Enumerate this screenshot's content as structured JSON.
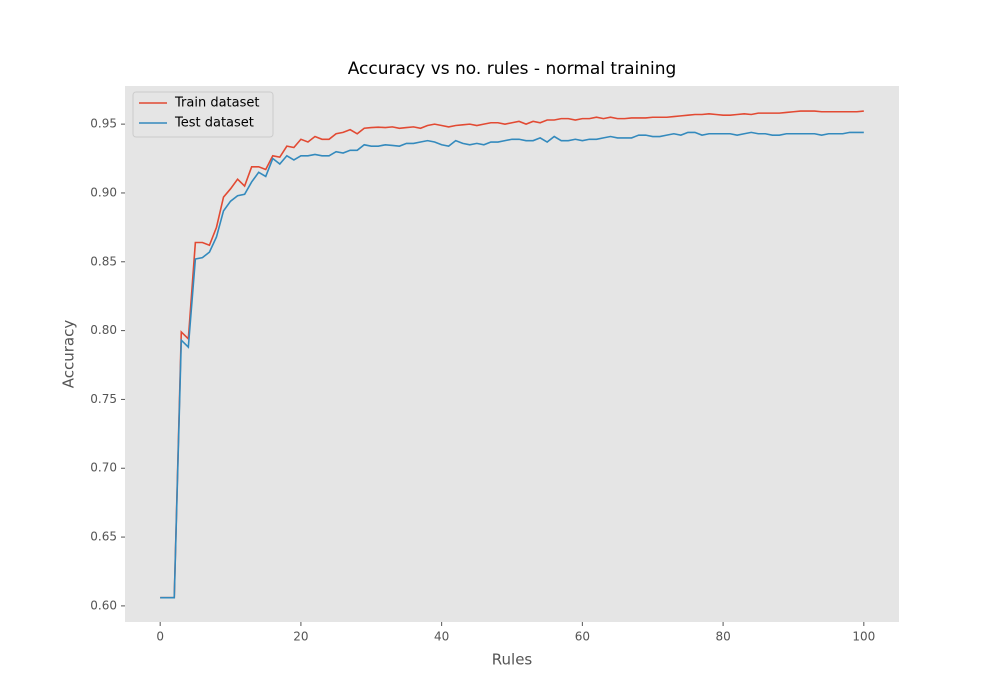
{
  "chart_data": {
    "type": "line",
    "title": "Accuracy vs no. rules - normal training",
    "x_label": "Rules",
    "y_label": "Accuracy",
    "x": [
      0,
      1,
      2,
      3,
      4,
      5,
      6,
      7,
      8,
      9,
      10,
      11,
      12,
      13,
      14,
      15,
      16,
      17,
      18,
      19,
      20,
      21,
      22,
      23,
      24,
      25,
      26,
      27,
      28,
      29,
      30,
      31,
      32,
      33,
      34,
      35,
      36,
      37,
      38,
      39,
      40,
      41,
      42,
      43,
      44,
      45,
      46,
      47,
      48,
      49,
      50,
      51,
      52,
      53,
      54,
      55,
      56,
      57,
      58,
      59,
      60,
      61,
      62,
      63,
      64,
      65,
      66,
      67,
      68,
      69,
      70,
      71,
      72,
      73,
      74,
      75,
      76,
      77,
      78,
      79,
      80,
      81,
      82,
      83,
      84,
      85,
      86,
      87,
      88,
      89,
      90,
      91,
      92,
      93,
      94,
      95,
      96,
      97,
      98,
      99,
      100
    ],
    "series": [
      {
        "name": "Train dataset",
        "color": "#e24a33",
        "values": [
          0.606,
          0.606,
          0.606,
          0.799,
          0.794,
          0.864,
          0.864,
          0.862,
          0.875,
          0.897,
          0.903,
          0.91,
          0.905,
          0.919,
          0.919,
          0.917,
          0.927,
          0.926,
          0.934,
          0.933,
          0.939,
          0.937,
          0.941,
          0.939,
          0.939,
          0.943,
          0.944,
          0.946,
          0.943,
          0.947,
          0.9475,
          0.9478,
          0.9475,
          0.948,
          0.947,
          0.9475,
          0.948,
          0.947,
          0.949,
          0.95,
          0.949,
          0.948,
          0.949,
          0.9495,
          0.95,
          0.949,
          0.95,
          0.951,
          0.951,
          0.95,
          0.951,
          0.952,
          0.95,
          0.952,
          0.951,
          0.953,
          0.953,
          0.954,
          0.954,
          0.953,
          0.954,
          0.954,
          0.955,
          0.954,
          0.955,
          0.954,
          0.954,
          0.9545,
          0.9545,
          0.9545,
          0.955,
          0.955,
          0.955,
          0.9555,
          0.956,
          0.9565,
          0.957,
          0.957,
          0.9575,
          0.957,
          0.9565,
          0.9565,
          0.957,
          0.9575,
          0.957,
          0.958,
          0.958,
          0.958,
          0.958,
          0.9585,
          0.959,
          0.9595,
          0.9595,
          0.9595,
          0.959,
          0.959,
          0.959,
          0.959,
          0.959,
          0.959,
          0.9595
        ]
      },
      {
        "name": "Test dataset",
        "color": "#348abd",
        "values": [
          0.606,
          0.606,
          0.606,
          0.793,
          0.788,
          0.852,
          0.853,
          0.857,
          0.868,
          0.887,
          0.894,
          0.898,
          0.899,
          0.908,
          0.915,
          0.912,
          0.925,
          0.921,
          0.927,
          0.924,
          0.927,
          0.927,
          0.928,
          0.927,
          0.927,
          0.93,
          0.929,
          0.931,
          0.931,
          0.935,
          0.934,
          0.934,
          0.935,
          0.9345,
          0.934,
          0.936,
          0.936,
          0.937,
          0.938,
          0.937,
          0.935,
          0.934,
          0.938,
          0.936,
          0.935,
          0.936,
          0.935,
          0.937,
          0.937,
          0.938,
          0.939,
          0.939,
          0.938,
          0.938,
          0.94,
          0.937,
          0.941,
          0.938,
          0.938,
          0.939,
          0.938,
          0.939,
          0.939,
          0.94,
          0.941,
          0.94,
          0.94,
          0.94,
          0.942,
          0.942,
          0.941,
          0.941,
          0.942,
          0.943,
          0.942,
          0.944,
          0.944,
          0.942,
          0.943,
          0.943,
          0.943,
          0.943,
          0.942,
          0.943,
          0.944,
          0.943,
          0.943,
          0.942,
          0.942,
          0.943,
          0.943,
          0.943,
          0.943,
          0.943,
          0.942,
          0.943,
          0.943,
          0.943,
          0.944,
          0.944,
          0.944
        ]
      }
    ],
    "xlim": [
      -5,
      105
    ],
    "ylim": [
      0.5883,
      0.9777
    ],
    "xticks": [
      0,
      20,
      40,
      60,
      80,
      100
    ],
    "yticks": [
      {
        "value": 0.6,
        "label": "0.60"
      },
      {
        "value": 0.65,
        "label": "0.65"
      },
      {
        "value": 0.7,
        "label": "0.70"
      },
      {
        "value": 0.75,
        "label": "0.75"
      },
      {
        "value": 0.8,
        "label": "0.80"
      },
      {
        "value": 0.85,
        "label": "0.85"
      },
      {
        "value": 0.9,
        "label": "0.90"
      },
      {
        "value": 0.95,
        "label": "0.95"
      }
    ],
    "grid": false,
    "legend": "upper-left"
  }
}
